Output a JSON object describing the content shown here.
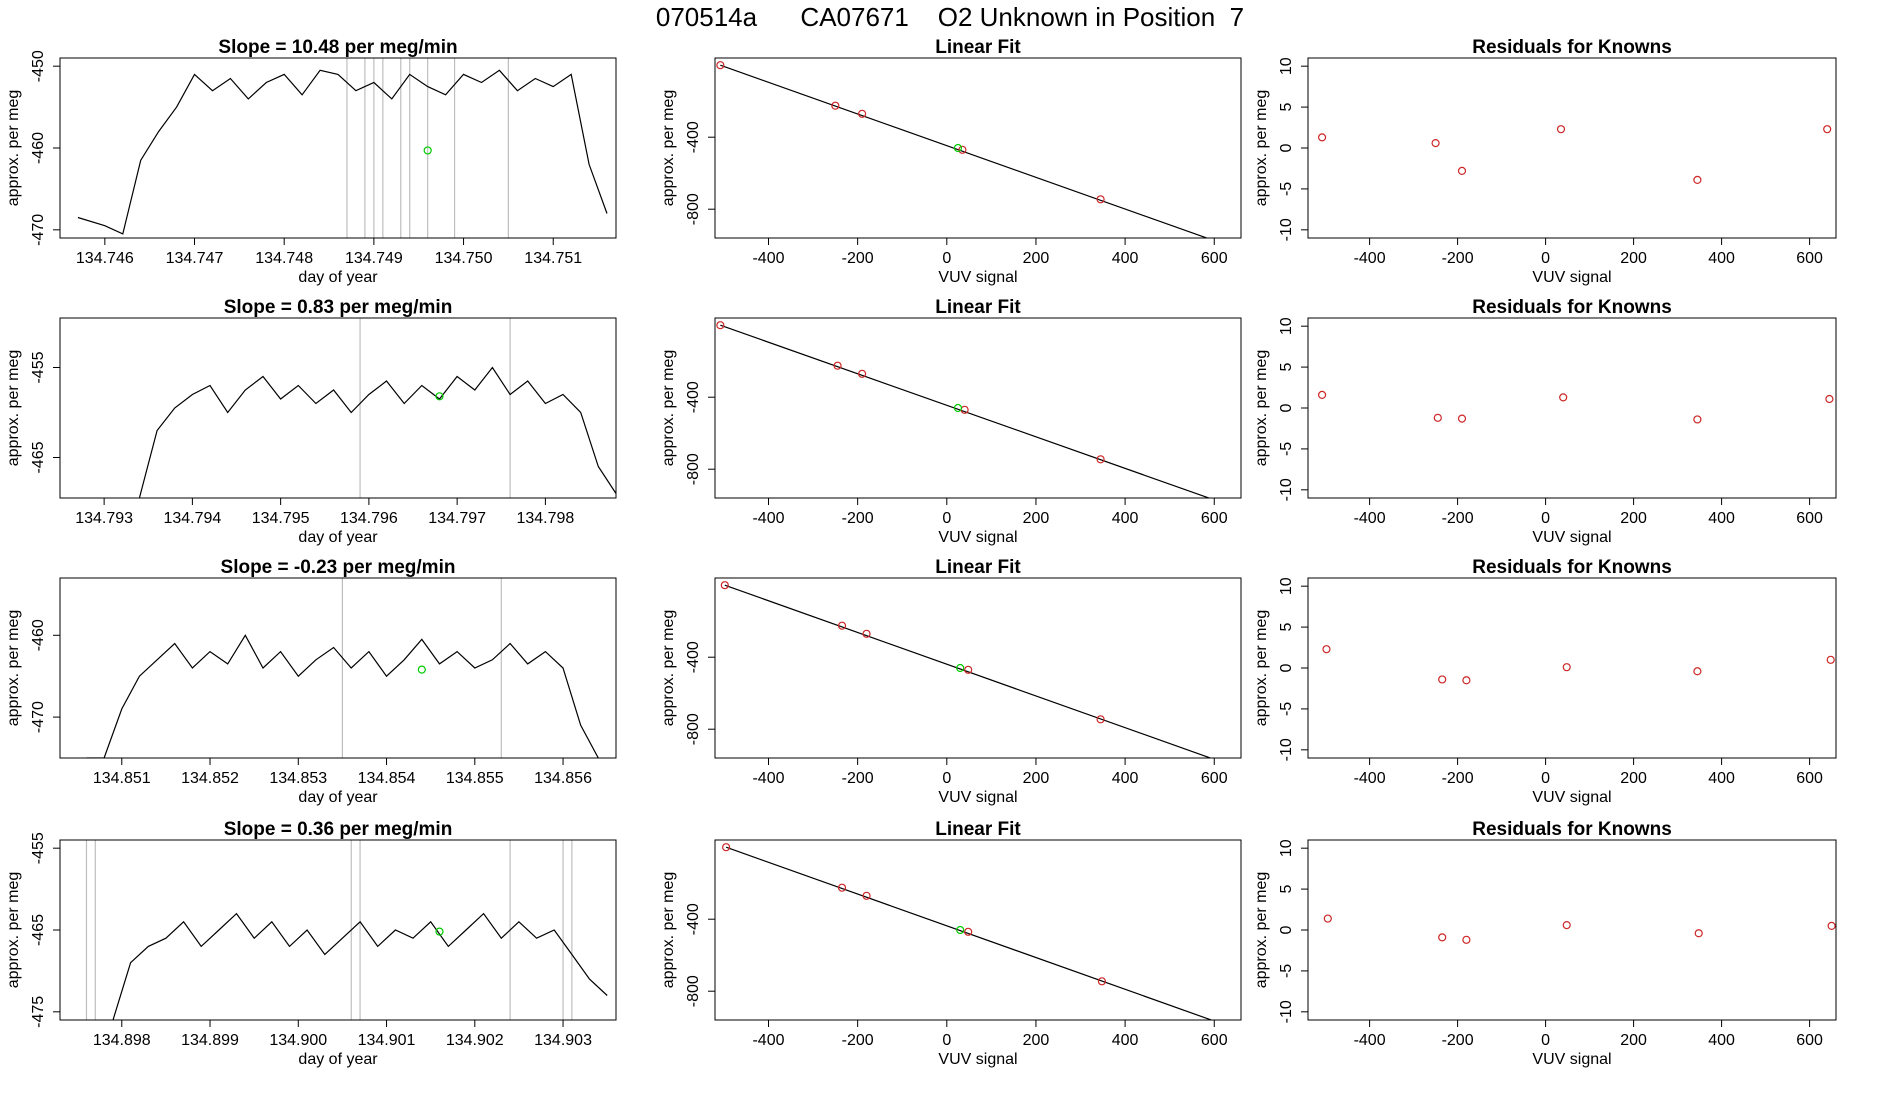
{
  "figure_title": "070514a      CA07671    O2 Unknown in Position  7",
  "colors": {
    "trace": "#000000",
    "vline": "#bebebe",
    "unknown_point": "#00cc00",
    "known_point": "#cd2626",
    "fit_line": "#000000"
  },
  "chart_data": [
    {
      "type": "line",
      "row": 0,
      "col": 0,
      "title": "Slope =  10.48  per meg/min",
      "xlabel": "day of year",
      "ylabel": "approx. per meg",
      "xlim": [
        134.7455,
        134.7517
      ],
      "ylim": [
        -471,
        -449
      ],
      "xticks": [
        134.746,
        134.747,
        134.748,
        134.749,
        134.75,
        134.751
      ],
      "xtick_labels": [
        "134.746",
        "134.747",
        "134.748",
        "134.749",
        "134.750",
        "134.751"
      ],
      "yticks": [
        -470,
        -460,
        -450
      ],
      "ytick_labels": [
        "-470",
        "-460",
        "-450"
      ],
      "series_x": [
        134.7457,
        134.746,
        134.7462,
        134.7464,
        134.7466,
        134.7468,
        134.747,
        134.7472,
        134.7474,
        134.7476,
        134.7478,
        134.748,
        134.7482,
        134.7484,
        134.7486,
        134.7488,
        134.749,
        134.7492,
        134.7494,
        134.7496,
        134.7498,
        134.75,
        134.7502,
        134.7504,
        134.7506,
        134.7508,
        134.751,
        134.7512,
        134.7514,
        134.7516
      ],
      "series_y": [
        -468.5,
        -469.5,
        -470.5,
        -461.5,
        -458,
        -455,
        -451,
        -453,
        -451.5,
        -454,
        -452,
        -451,
        -453.5,
        -450.5,
        -451,
        -453,
        -452,
        -454,
        -451,
        -452.5,
        -453.5,
        -451,
        -452,
        -450.5,
        -453,
        -451.5,
        -452.5,
        -451,
        -462,
        -468
      ],
      "vlines": [
        134.7487,
        134.7489,
        134.749,
        134.7491,
        134.7493,
        134.7494,
        134.7496,
        134.7499,
        134.7505
      ],
      "points": [
        {
          "x": 134.7496,
          "y": -460.3
        }
      ]
    },
    {
      "type": "scatter",
      "row": 0,
      "col": 1,
      "title": "Linear Fit",
      "xlabel": "VUV signal",
      "ylabel": "approx. per meg",
      "xlim": [
        -520,
        660
      ],
      "ylim": [
        -960,
        40
      ],
      "xticks": [
        -400,
        -200,
        0,
        200,
        400,
        600
      ],
      "xtick_labels": [
        "-400",
        "-200",
        "0",
        "200",
        "400",
        "600"
      ],
      "yticks": [
        -800,
        -400
      ],
      "ytick_labels": [
        "-800",
        "-400"
      ],
      "knowns": [
        {
          "x": -508,
          "y": 0
        },
        {
          "x": -250,
          "y": -225
        },
        {
          "x": -190,
          "y": -270
        },
        {
          "x": 35,
          "y": -470
        },
        {
          "x": 345,
          "y": -745
        },
        {
          "x": 640,
          "y": -1010
        }
      ],
      "unknown": {
        "x": 25,
        "y": -460
      },
      "fit": [
        {
          "x": -508,
          "y": 0
        },
        {
          "x": 640,
          "y": -1010
        }
      ]
    },
    {
      "type": "scatter",
      "row": 0,
      "col": 2,
      "title": "Residuals for Knowns",
      "xlabel": "VUV signal",
      "ylabel": "approx. per meg",
      "xlim": [
        -540,
        660
      ],
      "ylim": [
        -11,
        11
      ],
      "xticks": [
        -400,
        -200,
        0,
        200,
        400,
        600
      ],
      "xtick_labels": [
        "-400",
        "-200",
        "0",
        "200",
        "400",
        "600"
      ],
      "yticks": [
        -10,
        -5,
        0,
        5,
        10
      ],
      "ytick_labels": [
        "-10",
        "-5",
        "0",
        "5",
        "10"
      ],
      "points": [
        {
          "x": -508,
          "y": 1.3
        },
        {
          "x": -250,
          "y": 0.6
        },
        {
          "x": -190,
          "y": -2.8
        },
        {
          "x": 35,
          "y": 2.3
        },
        {
          "x": 345,
          "y": -3.9
        },
        {
          "x": 640,
          "y": 2.3
        }
      ]
    },
    {
      "type": "line",
      "row": 1,
      "col": 0,
      "title": "Slope =  0.83  per meg/min",
      "xlabel": "day of year",
      "ylabel": "approx. per meg",
      "xlim": [
        134.7925,
        134.7988
      ],
      "ylim": [
        -469.5,
        -449.5
      ],
      "xticks": [
        134.793,
        134.794,
        134.795,
        134.796,
        134.797,
        134.798
      ],
      "xtick_labels": [
        "134.793",
        "134.794",
        "134.795",
        "134.796",
        "134.797",
        "134.798"
      ],
      "yticks": [
        -465,
        -455
      ],
      "ytick_labels": [
        "-465",
        "-455"
      ],
      "series_x": [
        134.7934,
        134.7936,
        134.7938,
        134.794,
        134.7942,
        134.7944,
        134.7946,
        134.7948,
        134.795,
        134.7952,
        134.7954,
        134.7956,
        134.7958,
        134.796,
        134.7962,
        134.7964,
        134.7966,
        134.7968,
        134.797,
        134.7972,
        134.7974,
        134.7976,
        134.7978,
        134.798,
        134.7982,
        134.7984,
        134.7986,
        134.7988
      ],
      "series_y": [
        -469.5,
        -462,
        -459.5,
        -458,
        -457,
        -460,
        -457.5,
        -456,
        -458.5,
        -457,
        -459,
        -457.5,
        -460,
        -458,
        -456.5,
        -459,
        -457,
        -458.5,
        -456,
        -457.5,
        -455,
        -458,
        -456.5,
        -459,
        -458,
        -460,
        -466,
        -469
      ],
      "vlines": [
        134.7959,
        134.7976
      ],
      "points": [
        {
          "x": 134.7968,
          "y": -458.2
        }
      ]
    },
    {
      "type": "scatter",
      "row": 1,
      "col": 1,
      "title": "Linear Fit",
      "xlabel": "VUV signal",
      "ylabel": "approx. per meg",
      "xlim": [
        -520,
        660
      ],
      "ylim": [
        -960,
        40
      ],
      "xticks": [
        -400,
        -200,
        0,
        200,
        400,
        600
      ],
      "xtick_labels": [
        "-400",
        "-200",
        "0",
        "200",
        "400",
        "600"
      ],
      "yticks": [
        -800,
        -400
      ],
      "ytick_labels": [
        "-800",
        "-400"
      ],
      "knowns": [
        {
          "x": -508,
          "y": 0
        },
        {
          "x": -245,
          "y": -225
        },
        {
          "x": -190,
          "y": -270
        },
        {
          "x": 40,
          "y": -470
        },
        {
          "x": 345,
          "y": -745
        },
        {
          "x": 645,
          "y": -1010
        }
      ],
      "unknown": {
        "x": 25,
        "y": -460
      },
      "fit": [
        {
          "x": -508,
          "y": 0
        },
        {
          "x": 645,
          "y": -1010
        }
      ]
    },
    {
      "type": "scatter",
      "row": 1,
      "col": 2,
      "title": "Residuals for Knowns",
      "xlabel": "VUV signal",
      "ylabel": "approx. per meg",
      "xlim": [
        -540,
        660
      ],
      "ylim": [
        -11,
        11
      ],
      "xticks": [
        -400,
        -200,
        0,
        200,
        400,
        600
      ],
      "xtick_labels": [
        "-400",
        "-200",
        "0",
        "200",
        "400",
        "600"
      ],
      "yticks": [
        -10,
        -5,
        0,
        5,
        10
      ],
      "ytick_labels": [
        "-10",
        "-5",
        "0",
        "5",
        "10"
      ],
      "points": [
        {
          "x": -508,
          "y": 1.6
        },
        {
          "x": -245,
          "y": -1.2
        },
        {
          "x": -190,
          "y": -1.3
        },
        {
          "x": 40,
          "y": 1.3
        },
        {
          "x": 345,
          "y": -1.4
        },
        {
          "x": 645,
          "y": 1.1
        }
      ]
    },
    {
      "type": "line",
      "row": 2,
      "col": 0,
      "title": "Slope =  -0.23  per meg/min",
      "xlabel": "day of year",
      "ylabel": "approx. per meg",
      "xlim": [
        134.8503,
        134.8566
      ],
      "ylim": [
        -475,
        -453
      ],
      "xticks": [
        134.851,
        134.852,
        134.853,
        134.854,
        134.855,
        134.856
      ],
      "xtick_labels": [
        "134.851",
        "134.852",
        "134.853",
        "134.854",
        "134.855",
        "134.856"
      ],
      "yticks": [
        -470,
        -460
      ],
      "ytick_labels": [
        "-470",
        "-460"
      ],
      "series_x": [
        134.8506,
        134.8508,
        134.851,
        134.8512,
        134.8514,
        134.8516,
        134.8518,
        134.852,
        134.8522,
        134.8524,
        134.8526,
        134.8528,
        134.853,
        134.8532,
        134.8534,
        134.8536,
        134.8538,
        134.854,
        134.8542,
        134.8544,
        134.8546,
        134.8548,
        134.855,
        134.8552,
        134.8554,
        134.8556,
        134.8558,
        134.856,
        134.8562,
        134.8564
      ],
      "series_y": [
        -475,
        -475,
        -469,
        -465,
        -463,
        -461,
        -464,
        -462,
        -463.5,
        -460,
        -464,
        -462,
        -465,
        -463,
        -461.5,
        -464,
        -462,
        -465,
        -463,
        -460.5,
        -463.5,
        -462,
        -464,
        -463,
        -461,
        -463.5,
        -462,
        -464,
        -471,
        -475
      ],
      "vlines": [
        134.8535,
        134.8553
      ],
      "points": [
        {
          "x": 134.8544,
          "y": -464.2
        }
      ]
    },
    {
      "type": "scatter",
      "row": 2,
      "col": 1,
      "title": "Linear Fit",
      "xlabel": "VUV signal",
      "ylabel": "approx. per meg",
      "xlim": [
        -520,
        660
      ],
      "ylim": [
        -960,
        40
      ],
      "xticks": [
        -400,
        -200,
        0,
        200,
        400,
        600
      ],
      "xtick_labels": [
        "-400",
        "-200",
        "0",
        "200",
        "400",
        "600"
      ],
      "yticks": [
        -800,
        -400
      ],
      "ytick_labels": [
        "-800",
        "-400"
      ],
      "knowns": [
        {
          "x": -498,
          "y": 0
        },
        {
          "x": -235,
          "y": -225
        },
        {
          "x": -180,
          "y": -270
        },
        {
          "x": 48,
          "y": -470
        },
        {
          "x": 345,
          "y": -745
        },
        {
          "x": 648,
          "y": -1010
        }
      ],
      "unknown": {
        "x": 30,
        "y": -460
      },
      "fit": [
        {
          "x": -498,
          "y": 0
        },
        {
          "x": 648,
          "y": -1010
        }
      ]
    },
    {
      "type": "scatter",
      "row": 2,
      "col": 2,
      "title": "Residuals for Knowns",
      "xlabel": "VUV signal",
      "ylabel": "approx. per meg",
      "xlim": [
        -540,
        660
      ],
      "ylim": [
        -11,
        11
      ],
      "xticks": [
        -400,
        -200,
        0,
        200,
        400,
        600
      ],
      "xtick_labels": [
        "-400",
        "-200",
        "0",
        "200",
        "400",
        "600"
      ],
      "yticks": [
        -10,
        -5,
        0,
        5,
        10
      ],
      "ytick_labels": [
        "-10",
        "-5",
        "0",
        "5",
        "10"
      ],
      "points": [
        {
          "x": -498,
          "y": 2.3
        },
        {
          "x": -235,
          "y": -1.4
        },
        {
          "x": -180,
          "y": -1.5
        },
        {
          "x": 48,
          "y": 0.1
        },
        {
          "x": 345,
          "y": -0.4
        },
        {
          "x": 648,
          "y": 1.0
        }
      ]
    },
    {
      "type": "line",
      "row": 3,
      "col": 0,
      "title": "Slope =  0.36  per meg/min",
      "xlabel": "day of year",
      "ylabel": "approx. per meg",
      "xlim": [
        134.8973,
        134.9036
      ],
      "ylim": [
        -476,
        -454
      ],
      "xticks": [
        134.898,
        134.899,
        134.9,
        134.901,
        134.902,
        134.903
      ],
      "xtick_labels": [
        "134.898",
        "134.899",
        "134.900",
        "134.901",
        "134.902",
        "134.903"
      ],
      "yticks": [
        -475,
        -465,
        -455
      ],
      "ytick_labels": [
        "-475",
        "-465",
        "-455"
      ],
      "series_x": [
        134.8979,
        134.8981,
        134.8983,
        134.8985,
        134.8987,
        134.8989,
        134.8991,
        134.8993,
        134.8995,
        134.8997,
        134.8999,
        134.9001,
        134.9003,
        134.9005,
        134.9007,
        134.9009,
        134.9011,
        134.9013,
        134.9015,
        134.9017,
        134.9019,
        134.9021,
        134.9023,
        134.9025,
        134.9027,
        134.9029,
        134.9031,
        134.9033,
        134.9035
      ],
      "series_y": [
        -476,
        -469,
        -467,
        -466,
        -464,
        -467,
        -465,
        -463,
        -466,
        -464,
        -467,
        -465,
        -468,
        -466,
        -464,
        -467,
        -465,
        -466,
        -464,
        -467,
        -465,
        -463,
        -466,
        -464,
        -466,
        -465,
        -468,
        -471,
        -473
      ],
      "vlines": [
        134.8976,
        134.8977,
        134.9006,
        134.9007,
        134.9024,
        134.903,
        134.9031
      ],
      "points": [
        {
          "x": 134.9016,
          "y": -465.2
        }
      ]
    },
    {
      "type": "scatter",
      "row": 3,
      "col": 1,
      "title": "Linear Fit",
      "xlabel": "VUV signal",
      "ylabel": "approx. per meg",
      "xlim": [
        -520,
        660
      ],
      "ylim": [
        -960,
        40
      ],
      "xticks": [
        -400,
        -200,
        0,
        200,
        400,
        600
      ],
      "xtick_labels": [
        "-400",
        "-200",
        "0",
        "200",
        "400",
        "600"
      ],
      "yticks": [
        -800,
        -400
      ],
      "ytick_labels": [
        "-800",
        "-400"
      ],
      "knowns": [
        {
          "x": -495,
          "y": 0
        },
        {
          "x": -235,
          "y": -225
        },
        {
          "x": -180,
          "y": -270
        },
        {
          "x": 48,
          "y": -470
        },
        {
          "x": 348,
          "y": -745
        },
        {
          "x": 650,
          "y": -1010
        }
      ],
      "unknown": {
        "x": 30,
        "y": -460
      },
      "fit": [
        {
          "x": -495,
          "y": 0
        },
        {
          "x": 650,
          "y": -1010
        }
      ]
    },
    {
      "type": "scatter",
      "row": 3,
      "col": 2,
      "title": "Residuals for Knowns",
      "xlabel": "VUV signal",
      "ylabel": "approx. per meg",
      "xlim": [
        -540,
        660
      ],
      "ylim": [
        -11,
        11
      ],
      "xticks": [
        -400,
        -200,
        0,
        200,
        400,
        600
      ],
      "xtick_labels": [
        "-400",
        "-200",
        "0",
        "200",
        "400",
        "600"
      ],
      "yticks": [
        -10,
        -5,
        0,
        5,
        10
      ],
      "ytick_labels": [
        "-10",
        "-5",
        "0",
        "5",
        "10"
      ],
      "points": [
        {
          "x": -495,
          "y": 1.4
        },
        {
          "x": -235,
          "y": -0.9
        },
        {
          "x": -180,
          "y": -1.2
        },
        {
          "x": 48,
          "y": 0.6
        },
        {
          "x": 348,
          "y": -0.4
        },
        {
          "x": 650,
          "y": 0.5
        }
      ]
    }
  ]
}
